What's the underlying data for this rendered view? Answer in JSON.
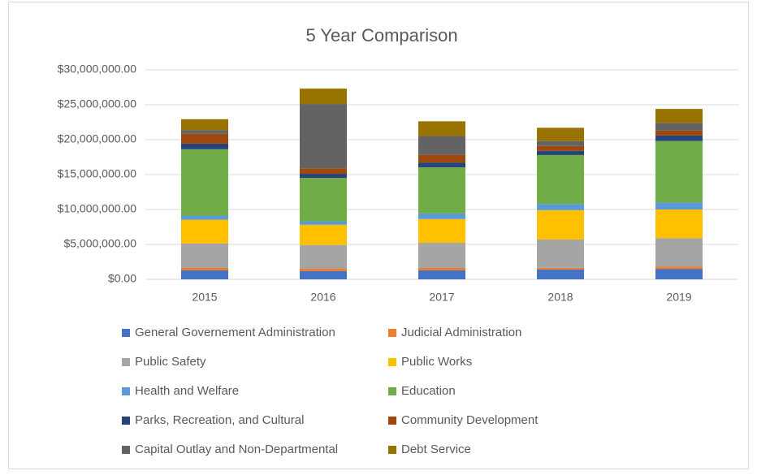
{
  "chart_data": {
    "type": "stacked_bar",
    "title": "5 Year Comparison",
    "categories": [
      "2015",
      "2016",
      "2017",
      "2018",
      "2019"
    ],
    "series": [
      {
        "name": "General Governement Administration",
        "color": "#4472c4",
        "values": [
          1280000,
          1160000,
          1280000,
          1400000,
          1500000
        ]
      },
      {
        "name": "Judicial Administration",
        "color": "#ed7d31",
        "values": [
          350000,
          350000,
          350000,
          250000,
          350000
        ]
      },
      {
        "name": "Public Safety",
        "color": "#a5a5a5",
        "values": [
          3500000,
          3400000,
          3600000,
          4050000,
          4050000
        ]
      },
      {
        "name": "Public Works",
        "color": "#ffc000",
        "values": [
          3400000,
          2900000,
          3400000,
          4200000,
          4100000
        ]
      },
      {
        "name": "Health and Welfare",
        "color": "#5b9bd5",
        "values": [
          600000,
          500000,
          800000,
          900000,
          1000000
        ]
      },
      {
        "name": "Education",
        "color": "#70ad47",
        "values": [
          9500000,
          6200000,
          6600000,
          7000000,
          8800000
        ]
      },
      {
        "name": "Parks, Recreation, and Cultural",
        "color": "#264478",
        "values": [
          800000,
          600000,
          700000,
          600000,
          800000
        ]
      },
      {
        "name": "Community Development",
        "color": "#9e480e",
        "values": [
          1400000,
          800000,
          1100000,
          700000,
          700000
        ]
      },
      {
        "name": "Capital Outlay and Non-Departmental",
        "color": "#636363",
        "values": [
          500000,
          9200000,
          2700000,
          700000,
          1100000
        ]
      },
      {
        "name": "Debt Service",
        "color": "#997300",
        "values": [
          1600000,
          2200000,
          2100000,
          1900000,
          2000000
        ]
      }
    ],
    "ylim": [
      0,
      30000000
    ],
    "yticks": [
      {
        "value": 0,
        "label": "$0.00"
      },
      {
        "value": 5000000,
        "label": "$5,000,000.00"
      },
      {
        "value": 10000000,
        "label": "$10,000,000.00"
      },
      {
        "value": 15000000,
        "label": "$15,000,000.00"
      },
      {
        "value": 20000000,
        "label": "$20,000,000.00"
      },
      {
        "value": 25000000,
        "label": "$25,000,000.00"
      },
      {
        "value": 30000000,
        "label": "$30,000,000.00"
      }
    ],
    "grid": true,
    "legend": "bottom"
  }
}
